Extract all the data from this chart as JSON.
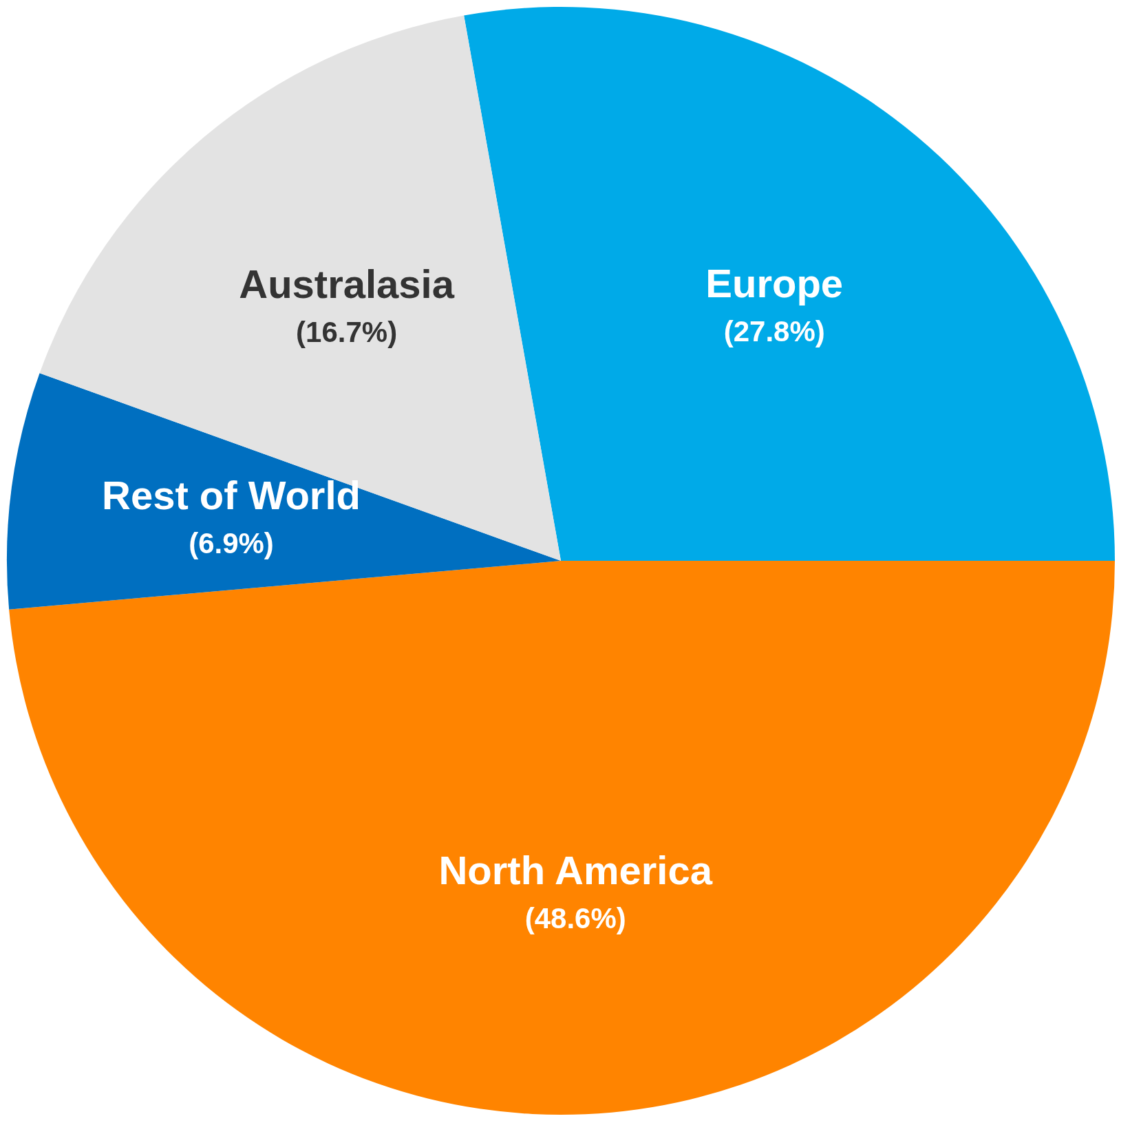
{
  "chart_data": {
    "type": "pie",
    "categories": [
      "Europe",
      "North America",
      "Rest of World",
      "Australasia"
    ],
    "values": [
      27.8,
      48.6,
      6.9,
      16.7
    ],
    "colors": [
      "#00aae8",
      "#ff8400",
      "#006fc0",
      "#e3e3e3"
    ],
    "value_labels": [
      "(27.8%)",
      "(48.6%)",
      "(6.9%)",
      "(16.7%)"
    ]
  }
}
